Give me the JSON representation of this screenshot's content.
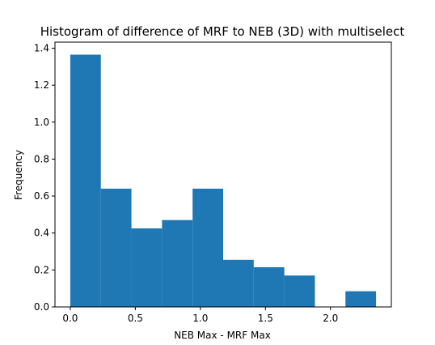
{
  "chart_data": {
    "type": "bar",
    "title": "Histogram of difference of MRF to NEB (3D) with multiselect",
    "xlabel": "NEB Max - MRF Max",
    "ylabel": "Frequency",
    "bin_edges": [
      0.0,
      0.235,
      0.47,
      0.705,
      0.94,
      1.175,
      1.41,
      1.645,
      1.88,
      2.115,
      2.35
    ],
    "values": [
      1.365,
      0.64,
      0.425,
      0.47,
      0.64,
      0.255,
      0.215,
      0.17,
      0.0,
      0.085
    ],
    "xlim": [
      -0.1175,
      2.4675
    ],
    "ylim": [
      0,
      1.433
    ],
    "xticks": [
      0.0,
      0.5,
      1.0,
      1.5,
      2.0
    ],
    "xtick_labels": [
      "0.0",
      "0.5",
      "1.0",
      "1.5",
      "2.0"
    ],
    "yticks": [
      0.0,
      0.2,
      0.4,
      0.6,
      0.8,
      1.0,
      1.2,
      1.4
    ],
    "ytick_labels": [
      "0.0",
      "0.2",
      "0.4",
      "0.6",
      "0.8",
      "1.0",
      "1.2",
      "1.4"
    ],
    "bar_color": "#1f77b4",
    "grid": false,
    "legend": "none"
  }
}
